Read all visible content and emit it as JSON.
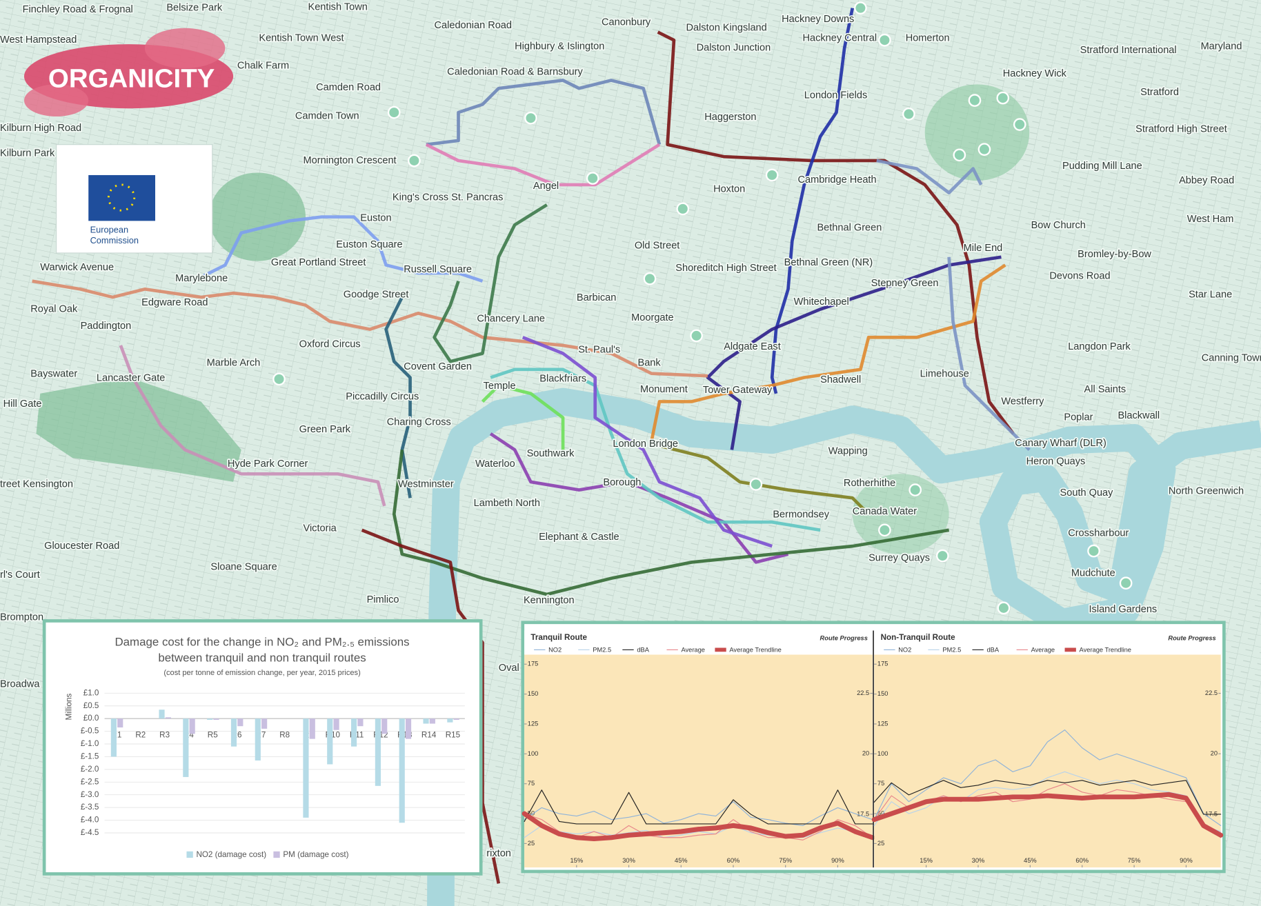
{
  "logo": {
    "brand": "ORGANICITY",
    "partner": [
      "European",
      "Commission"
    ]
  },
  "map": {
    "labels": [
      "Finchley Road & Frognal",
      "Belsize Park",
      "Kentish Town",
      "West Hampstead",
      "Kentish Town West",
      "Caledonian Road",
      "Highbury & Islington",
      "Canonbury",
      "Dalston Kingsland",
      "Hackney Downs",
      "Hackney Central",
      "Homerton",
      "Chalk Farm",
      "Caledonian Road & Barnsbury",
      "Dalston Junction",
      "Stratford International",
      "Maryland",
      "Camden Road",
      "Hackney Wick",
      "Kilburn High Road",
      "Camden Town",
      "Haggerston",
      "London Fields",
      "Stratford",
      "Stratford High Street",
      "Kilburn Park",
      "Mornington Crescent",
      "Cambridge Heath",
      "Pudding Mill Lane",
      "Abbey Road",
      "King's Cross St. Pancras",
      "Angel",
      "Hoxton",
      "Euston",
      "Bethnal Green",
      "Bow Church",
      "West Ham",
      "Euston Square",
      "Old Street",
      "Mile End",
      "Bromley-by-Bow",
      "Warwick Avenue",
      "Great Portland Street",
      "Russell Square",
      "Shoreditch High Street",
      "Bethnal Green (NR)",
      "Devons Road",
      "Marylebone",
      "Stepney Green",
      "Star Lane",
      "Royal Oak",
      "Edgware Road",
      "Goodge Street",
      "Barbican",
      "Whitechapel",
      "Moorgate",
      "Chancery Lane",
      "Paddington",
      "Oxford Circus",
      "St. Paul's",
      "Aldgate East",
      "Langdon Park",
      "Canning Town",
      "Marble Arch",
      "Bank",
      "Covent Garden",
      "Blackfriars",
      "Bayswater",
      "Lancaster Gate",
      "Limehouse",
      "Shadwell",
      "Temple",
      "Monument",
      "Tower Gateway",
      "All Saints",
      "Piccadilly Circus",
      "Westferry",
      "Hill Gate",
      "Poplar",
      "Blackwall",
      "Charing Cross",
      "Green Park",
      "Canary Wharf (DLR)",
      "London Bridge",
      "Southwark",
      "Wapping",
      "Waterloo",
      "Hyde Park Corner",
      "Heron Quays",
      "treet Kensington",
      "Westminster",
      "Borough",
      "Rotherhithe",
      "South Quay",
      "North Greenwich",
      "Lambeth North",
      "Bermondsey",
      "Canada Water",
      "Victoria",
      "Crossharbour",
      "Elephant & Castle",
      "Gloucester Road",
      "Surrey Quays",
      "Sloane Square",
      "rl's Court",
      "Mudchute",
      "Pimlico",
      "Kennington",
      "Island Gardens",
      "Brompton",
      "Oval",
      "Broadwa",
      "rixton"
    ]
  },
  "chart_data": [
    {
      "type": "bar",
      "title": [
        "Damage cost for the change in NO₂ and PM₂.₅ emissions",
        "between tranquil and non tranquil routes"
      ],
      "subtitle": "(cost per tonne of emission change, per year, 2015 prices)",
      "ylabel": "Millions",
      "categories": [
        "R1",
        "R2",
        "R3",
        "R4",
        "R5",
        "R6",
        "R7",
        "R8",
        "R9",
        "R10",
        "R11",
        "R12",
        "R13",
        "R14",
        "R15"
      ],
      "series": [
        {
          "name": "NO2 (damage cost)",
          "color": "#b5dbe7",
          "values": [
            -1.5,
            0,
            0.35,
            -2.3,
            -0.05,
            -1.1,
            -1.65,
            0,
            -3.9,
            -1.8,
            -1.1,
            -2.65,
            -4.1,
            -0.2,
            -0.15
          ]
        },
        {
          "name": "PM (damage cost)",
          "color": "#c9bfe0",
          "values": [
            -0.35,
            0,
            0.05,
            -0.6,
            -0.05,
            -0.3,
            -0.4,
            0,
            -0.8,
            -0.45,
            -0.3,
            -0.6,
            -0.8,
            -0.2,
            -0.05
          ]
        }
      ],
      "ylim": [
        -4.5,
        1.0
      ],
      "yticks": [
        {
          "value": 1.0,
          "label": "£1.0"
        },
        {
          "value": 0.5,
          "label": "£0.5"
        },
        {
          "value": 0,
          "label": "£0.0"
        },
        {
          "value": -0.5,
          "label": "£-0.5"
        },
        {
          "value": -1.0,
          "label": "£-1.0"
        },
        {
          "value": -1.5,
          "label": "£-1.5"
        },
        {
          "value": -2.0,
          "label": "£-2.0"
        },
        {
          "value": -2.5,
          "label": "£-2.5"
        },
        {
          "value": -3.0,
          "label": "£-3.0"
        },
        {
          "value": -3.5,
          "label": "£-3.5"
        },
        {
          "value": -4.0,
          "label": "£-4.0"
        },
        {
          "value": -4.5,
          "label": "£-4.5"
        }
      ],
      "grid": true
    },
    {
      "type": "line",
      "title": "Tranquil Route",
      "corner_label": "Route Progress",
      "x": [
        0,
        5,
        10,
        15,
        20,
        25,
        30,
        35,
        40,
        45,
        50,
        55,
        60,
        65,
        70,
        75,
        80,
        85,
        90,
        95,
        100
      ],
      "xlim": [
        0,
        100
      ],
      "xticks": [
        {
          "value": 15,
          "label": "15%"
        },
        {
          "value": 30,
          "label": "30%"
        },
        {
          "value": 45,
          "label": "45%"
        },
        {
          "value": 60,
          "label": "60%"
        },
        {
          "value": 75,
          "label": "75%"
        },
        {
          "value": 90,
          "label": "90%"
        }
      ],
      "ylim": [
        5,
        183
      ],
      "yticks": [
        25,
        50,
        75,
        100,
        125,
        150,
        175
      ],
      "y2lim": [
        15.3,
        24.1
      ],
      "y2ticks": [
        17.5,
        20,
        22.5
      ],
      "series": [
        {
          "name": "NO2",
          "color": "#8fb3d9",
          "width": 1,
          "values": [
            45,
            55,
            50,
            48,
            52,
            45,
            47,
            50,
            42,
            45,
            50,
            48,
            60,
            47,
            45,
            42,
            40,
            48,
            55,
            50,
            45
          ]
        },
        {
          "name": "PM2.5",
          "color": "#b9d3ea",
          "width": 1,
          "values": [
            30,
            40,
            35,
            33,
            35,
            32,
            34,
            36,
            30,
            32,
            35,
            33,
            40,
            34,
            32,
            30,
            30,
            34,
            38,
            35,
            30
          ]
        },
        {
          "name": "dBA",
          "color": "#222222",
          "width": 1,
          "axis": "y2",
          "values": [
            17.2,
            18.5,
            17.2,
            17.1,
            17.1,
            17.1,
            18.4,
            17.1,
            17.1,
            17.1,
            17.1,
            17.1,
            18.1,
            17.5,
            17.1,
            17.1,
            17.1,
            17.1,
            18.5,
            17.1,
            17.1
          ]
        },
        {
          "name": "Average",
          "color": "#e8868a",
          "width": 1,
          "values": [
            50,
            45,
            35,
            30,
            35,
            30,
            40,
            32,
            30,
            30,
            32,
            33,
            45,
            35,
            30,
            30,
            28,
            35,
            45,
            40,
            30
          ]
        },
        {
          "name": "Average Trendline",
          "color": "#c94c4c",
          "width": 6,
          "values": [
            50,
            40,
            33,
            30,
            29,
            30,
            32,
            33,
            34,
            35,
            37,
            38,
            40,
            38,
            34,
            31,
            32,
            38,
            42,
            35,
            30
          ]
        }
      ]
    },
    {
      "type": "line",
      "title": "Non-Tranquil Route",
      "corner_label": "Route Progress",
      "x": [
        0,
        5,
        10,
        15,
        20,
        25,
        30,
        35,
        40,
        45,
        50,
        55,
        60,
        65,
        70,
        75,
        80,
        85,
        90,
        95,
        100
      ],
      "xlim": [
        0,
        100
      ],
      "xticks": [
        {
          "value": 15,
          "label": "15%"
        },
        {
          "value": 30,
          "label": "30%"
        },
        {
          "value": 45,
          "label": "45%"
        },
        {
          "value": 60,
          "label": "60%"
        },
        {
          "value": 75,
          "label": "75%"
        },
        {
          "value": 90,
          "label": "90%"
        }
      ],
      "ylim": [
        5,
        183
      ],
      "yticks": [
        25,
        50,
        75,
        100,
        125,
        150,
        175
      ],
      "y2lim": [
        15.3,
        24.1
      ],
      "y2ticks": [
        17.5,
        20,
        22.5
      ],
      "series": [
        {
          "name": "NO2",
          "color": "#8fb3d9",
          "width": 1,
          "values": [
            45,
            75,
            60,
            70,
            80,
            75,
            90,
            95,
            85,
            90,
            110,
            120,
            105,
            95,
            100,
            95,
            90,
            85,
            80,
            50,
            40
          ]
        },
        {
          "name": "PM2.5",
          "color": "#b9d3ea",
          "width": 1,
          "values": [
            40,
            60,
            50,
            55,
            65,
            60,
            70,
            72,
            70,
            72,
            80,
            85,
            80,
            75,
            78,
            75,
            70,
            68,
            65,
            40,
            35
          ]
        },
        {
          "name": "dBA",
          "color": "#222222",
          "width": 1,
          "axis": "y2",
          "values": [
            18.0,
            18.8,
            18.3,
            18.6,
            18.9,
            18.6,
            18.7,
            18.9,
            18.8,
            18.7,
            18.9,
            18.8,
            18.9,
            18.7,
            18.8,
            18.9,
            18.7,
            18.8,
            18.9,
            17.5,
            17.5
          ]
        },
        {
          "name": "Average",
          "color": "#e8868a",
          "width": 1,
          "values": [
            45,
            65,
            55,
            60,
            65,
            60,
            65,
            68,
            60,
            62,
            70,
            75,
            68,
            65,
            70,
            68,
            65,
            62,
            60,
            40,
            30
          ]
        },
        {
          "name": "Average Trendline",
          "color": "#c94c4c",
          "width": 6,
          "values": [
            45,
            50,
            55,
            60,
            62,
            62,
            62,
            63,
            64,
            64,
            65,
            64,
            63,
            64,
            64,
            64,
            65,
            66,
            63,
            40,
            32
          ]
        }
      ]
    }
  ]
}
